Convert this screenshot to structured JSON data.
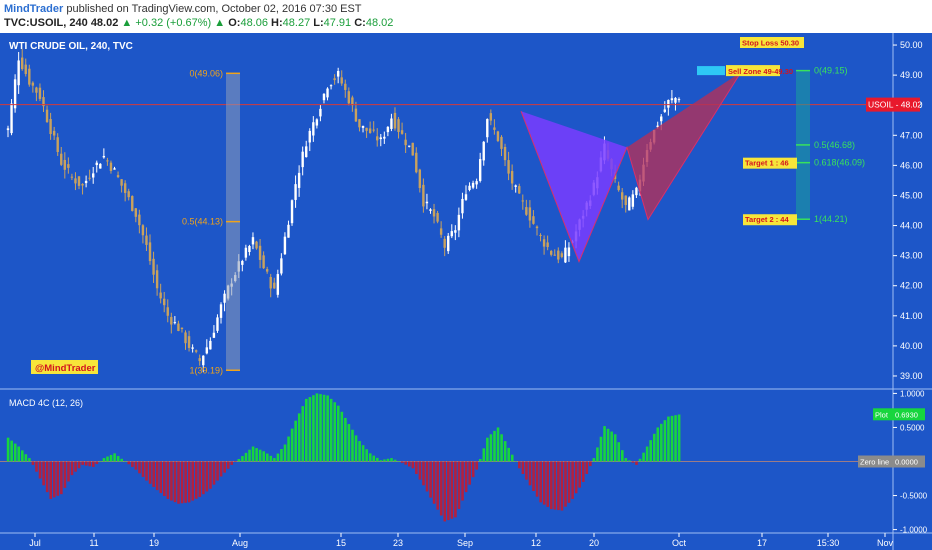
{
  "header": {
    "author": "MindTrader",
    "published_text": "published on TradingView.com, October 02, 2016 07:30 EST",
    "symbol": "TVC:USOIL, 240",
    "last": "48.02",
    "change_arrow": "▲",
    "change": "+0.32 (+0.67%)",
    "o_label": "O:",
    "o": "48.06",
    "h_label": "H:",
    "h": "48.27",
    "l_label": "L:",
    "l": "47.91",
    "c_label": "C:",
    "c": "48.02"
  },
  "colors": {
    "background": "#1d56c8",
    "panel_line": "#4d7fe0",
    "candle_up": "#ffffff",
    "candle_down": "#c9a25e",
    "fib_orange": "#f0a31b",
    "fib_green": "#39e25c",
    "pattern_left": "#7a3cff",
    "pattern_right": "#b3315a",
    "macd_pos": "#17d53e",
    "macd_neg": "#b3203f",
    "price_line": "#d63a3a"
  },
  "chart_data": {
    "type": "line",
    "title": "WTI CRUDE OIL, 240, TVC",
    "xlabel": "",
    "ylabel": "",
    "ylim": [
      38.6,
      50.4
    ],
    "yticks": [
      "50.00",
      "49.00",
      "48.00",
      "47.00",
      "46.00",
      "45.00",
      "44.00",
      "43.00",
      "42.00",
      "41.00",
      "40.00",
      "39.00"
    ],
    "xticks": [
      "Jul",
      "11",
      "19",
      "Aug",
      "15",
      "23",
      "Sep",
      "12",
      "20",
      "Oct",
      "17",
      "15:30",
      "Nov"
    ],
    "grid": false,
    "series": [
      {
        "name": "USOIL",
        "x_labels_note": "",
        "values": [
          47.2,
          49.6,
          48.8,
          48.3,
          47.2,
          46.1,
          45.6,
          45.3,
          45.9,
          46.3,
          45.8,
          45.1,
          44.4,
          43.3,
          41.9,
          41.0,
          40.6,
          40.0,
          39.5,
          40.2,
          41.3,
          42.2,
          42.9,
          43.5,
          42.6,
          41.8,
          43.6,
          45.4,
          46.8,
          47.7,
          48.7,
          49.0,
          48.2,
          47.3,
          47.1,
          46.8,
          47.6,
          47.0,
          46.4,
          44.8,
          44.3,
          43.3,
          43.9,
          45.2,
          45.6,
          47.6,
          46.9,
          45.7,
          44.9,
          44.3,
          43.6,
          43.1,
          42.9,
          43.5,
          44.4,
          45.3,
          46.6,
          45.4,
          44.6,
          45.1,
          46.6,
          47.4,
          48.1,
          48.3
        ]
      }
    ],
    "price_label": "USOIL",
    "price_value": "48.02",
    "price_value_num": 48.02,
    "stop_loss_label": "Stop Loss 50.30",
    "sell_zone_label": "Sell Zone 49-49.30",
    "target1_label": "Target 1 : 46",
    "target2_label": "Target 2 : 44",
    "fib_left": [
      {
        "label": "0(49.06)",
        "value": 49.06
      },
      {
        "label": "0.5(44.13)",
        "value": 44.13
      },
      {
        "label": "1(39.19)",
        "value": 39.19
      }
    ],
    "fib_right": [
      {
        "label": "0(49.15)",
        "value": 49.15
      },
      {
        "label": "0.5(46.68)",
        "value": 46.68
      },
      {
        "label": "0.618(46.09)",
        "value": 46.09
      },
      {
        "label": "1(44.21)",
        "value": 44.21
      }
    ],
    "pattern_points": [
      {
        "date": "Sep 8",
        "price": 47.8
      },
      {
        "date": "Sep 19",
        "price": 42.8
      },
      {
        "date": "Sep 23",
        "price": 46.6
      },
      {
        "date": "Sep 27",
        "price": 44.2
      },
      {
        "date": "Oct 6",
        "price": 49.1
      }
    ],
    "watermark": "@MindTrader",
    "macd": {
      "title": "MACD 4C (12, 26)",
      "ylim": [
        -1.05,
        1.05
      ],
      "yticks": [
        "1.0000",
        "0.5000",
        "-0.5000",
        "-1.0000"
      ],
      "plot_label": "Plot",
      "plot_value": "0.6930",
      "zero_label": "Zero line",
      "zero_value": "0.0000",
      "values": [
        0.35,
        0.22,
        0.05,
        -0.25,
        -0.55,
        -0.48,
        -0.2,
        -0.05,
        -0.08,
        0.05,
        0.12,
        0.0,
        -0.12,
        -0.28,
        -0.42,
        -0.55,
        -0.62,
        -0.6,
        -0.52,
        -0.4,
        -0.22,
        -0.05,
        0.08,
        0.22,
        0.15,
        0.05,
        0.25,
        0.6,
        0.92,
        1.0,
        0.97,
        0.82,
        0.55,
        0.3,
        0.12,
        0.02,
        0.05,
        -0.02,
        -0.1,
        -0.35,
        -0.62,
        -0.88,
        -0.82,
        -0.45,
        -0.12,
        0.35,
        0.5,
        0.2,
        -0.1,
        -0.35,
        -0.6,
        -0.7,
        -0.72,
        -0.55,
        -0.3,
        0.05,
        0.52,
        0.4,
        0.05,
        -0.05,
        0.22,
        0.5,
        0.66,
        0.69
      ]
    }
  }
}
